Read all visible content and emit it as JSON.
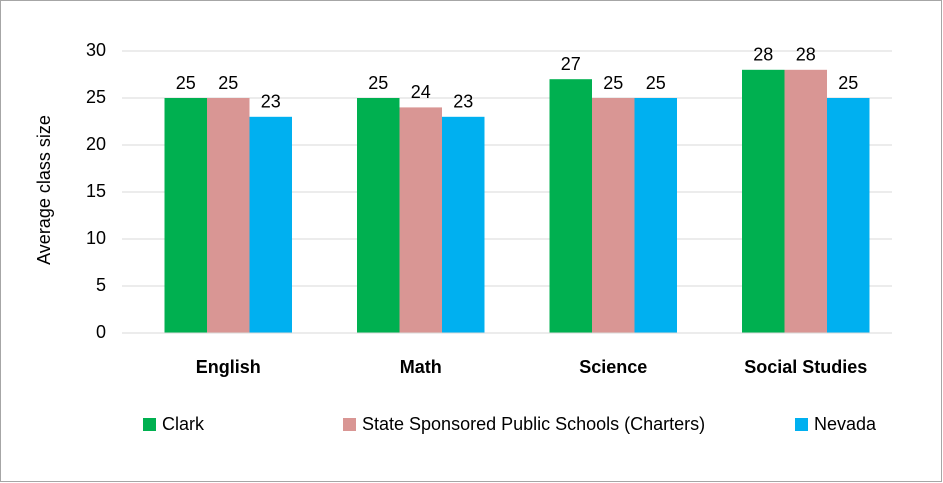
{
  "chart_data": {
    "type": "bar",
    "y_label": "Average class size",
    "categories": [
      "English",
      "Math",
      "Science",
      "Social Studies"
    ],
    "series": [
      {
        "name": "Clark",
        "color": "#00b050",
        "values": [
          25,
          25,
          27,
          28
        ]
      },
      {
        "name": "State Sponsored Public Schools (Charters)",
        "color": "#d99694",
        "values": [
          25,
          24,
          25,
          28
        ]
      },
      {
        "name": "Nevada",
        "color": "#00b0f0",
        "values": [
          23,
          23,
          25,
          25
        ]
      }
    ],
    "ylim": [
      0,
      30
    ],
    "yticks": [
      0,
      5,
      10,
      15,
      20,
      25,
      30
    ],
    "grid": true,
    "legend": "bottom"
  }
}
